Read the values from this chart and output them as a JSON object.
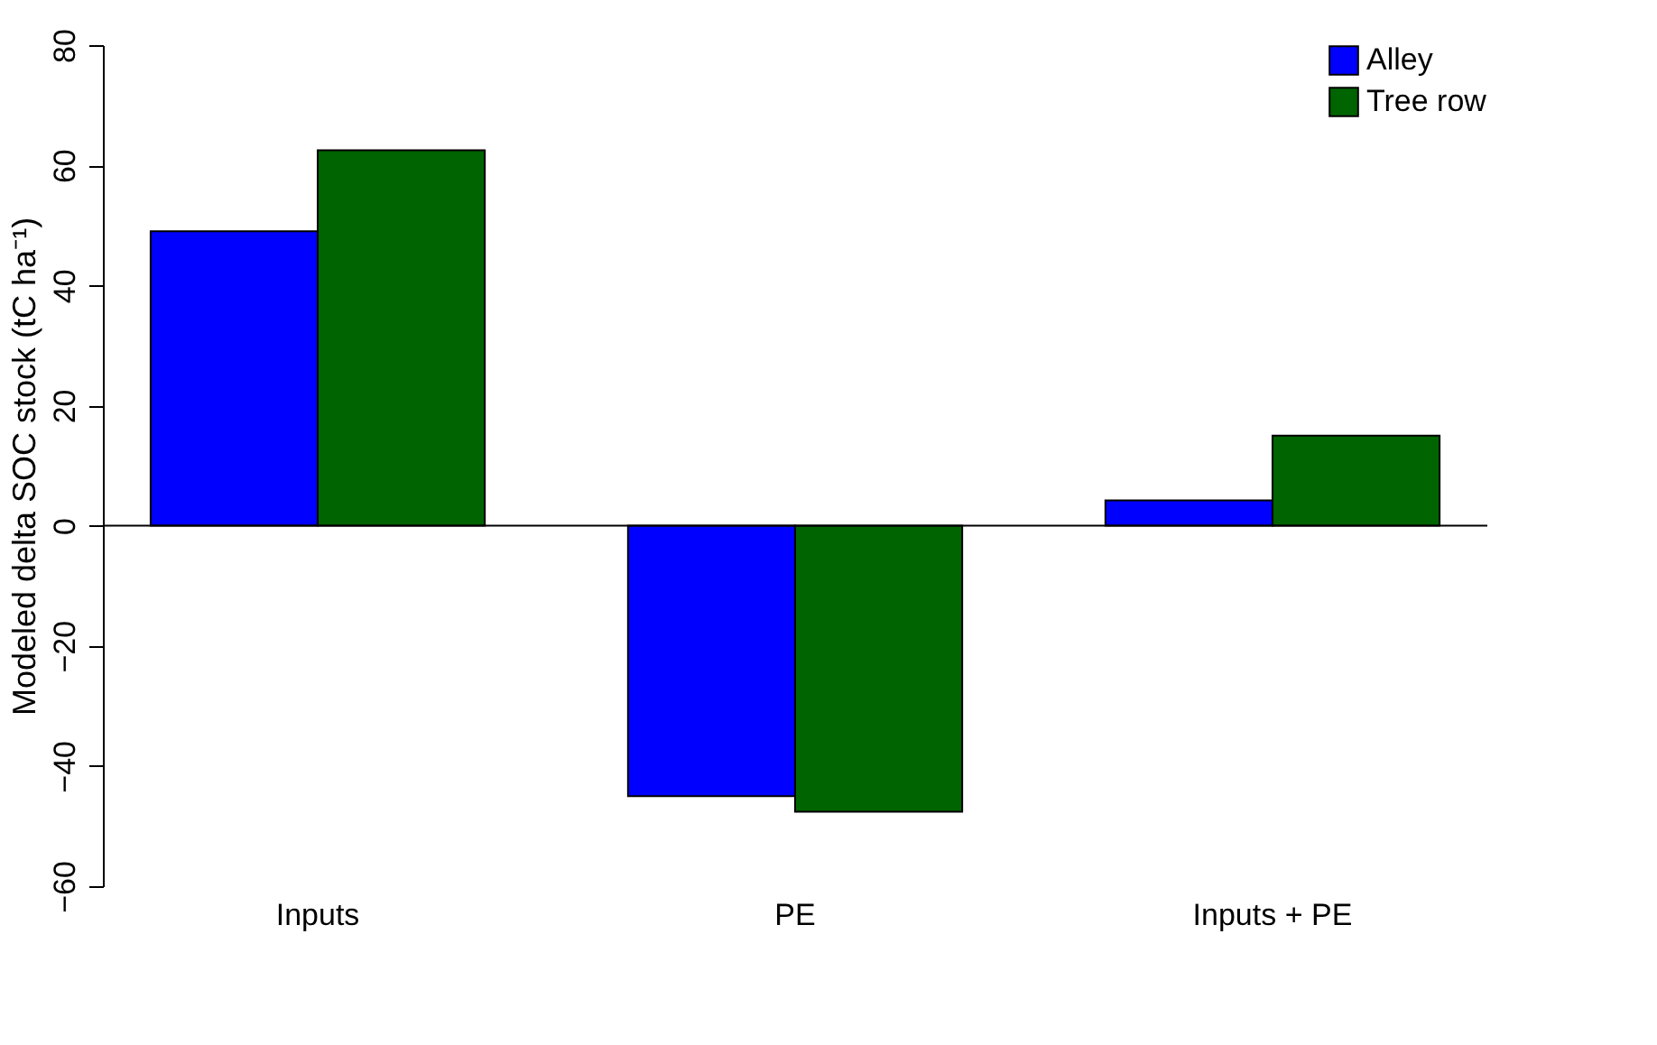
{
  "chart_data": {
    "type": "bar",
    "ylabel": "Modeled delta SOC stock (tC ha⁻¹)",
    "categories": [
      "Inputs",
      "PE",
      "Inputs + PE"
    ],
    "series": [
      {
        "name": "Alley",
        "color": "#0000ff",
        "values": [
          49,
          -45,
          4.2
        ]
      },
      {
        "name": "Tree row",
        "color": "#006400",
        "values": [
          62.5,
          -47.6,
          15
        ]
      }
    ],
    "ylim": [
      -60,
      80
    ],
    "yticks": [
      -60,
      -40,
      -20,
      0,
      20,
      40,
      60,
      80
    ],
    "ref_lines": [
      {
        "axis": "y",
        "value": 0
      }
    ],
    "grid": false,
    "legend": "top right"
  }
}
